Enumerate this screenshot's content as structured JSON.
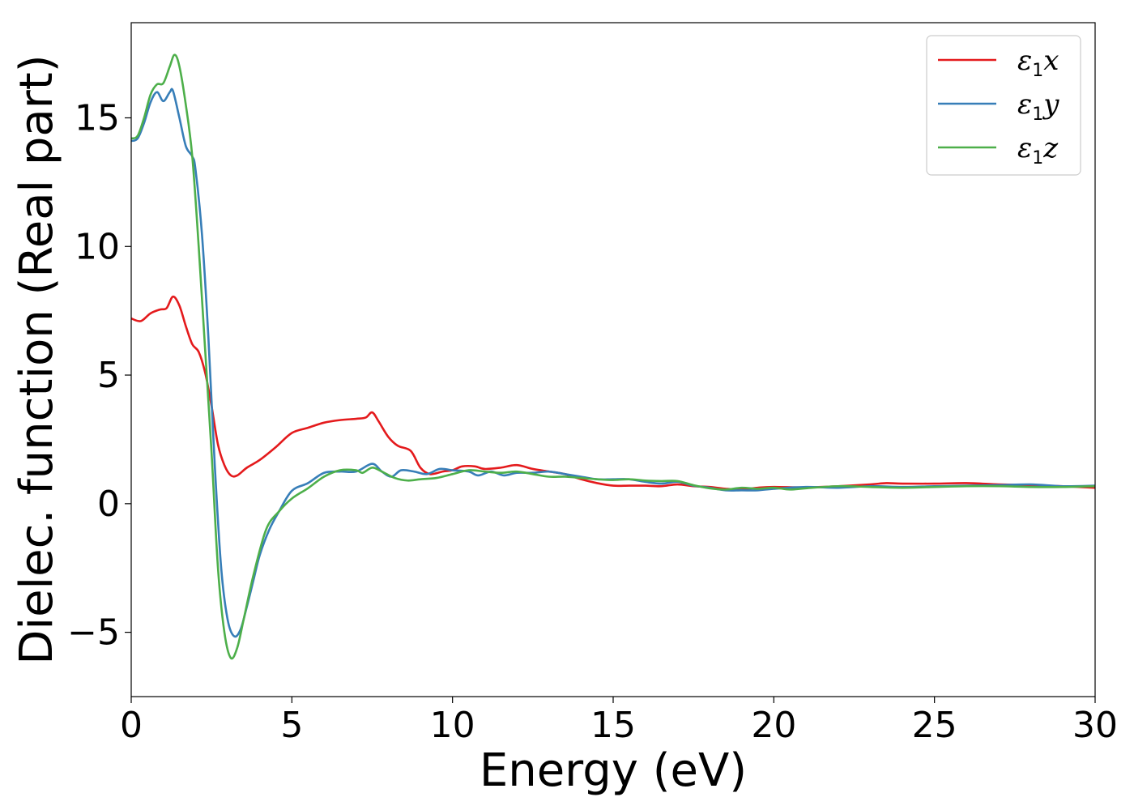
{
  "chart_data": {
    "type": "line",
    "title": "",
    "xlabel": "Energy (eV)",
    "ylabel": "Dielec. function (Real part)",
    "xlim": [
      0,
      30
    ],
    "ylim": [
      -7.5,
      18.7
    ],
    "x_ticks": [
      0,
      5,
      10,
      15,
      20,
      25,
      30
    ],
    "y_ticks": [
      -5,
      0,
      5,
      10,
      15
    ],
    "grid": false,
    "legend": {
      "position": "top-right",
      "entries": [
        {
          "symbol": "ε",
          "subscript": "1",
          "axis": "x"
        },
        {
          "symbol": "ε",
          "subscript": "1",
          "axis": "y"
        },
        {
          "symbol": "ε",
          "subscript": "1",
          "axis": "z"
        }
      ]
    },
    "colors": [
      "#e41a1c",
      "#377eb8",
      "#4daf4a"
    ],
    "series": [
      {
        "name": "ε1x",
        "color": "#e41a1c",
        "points": [
          [
            0,
            7.2
          ],
          [
            0.3,
            7.1
          ],
          [
            0.6,
            7.4
          ],
          [
            0.9,
            7.55
          ],
          [
            1.1,
            7.6
          ],
          [
            1.3,
            8.05
          ],
          [
            1.5,
            7.7
          ],
          [
            1.7,
            6.9
          ],
          [
            1.9,
            6.2
          ],
          [
            2.1,
            5.9
          ],
          [
            2.3,
            5.1
          ],
          [
            2.5,
            3.8
          ],
          [
            2.7,
            2.3
          ],
          [
            2.9,
            1.5
          ],
          [
            3.1,
            1.1
          ],
          [
            3.3,
            1.1
          ],
          [
            3.6,
            1.4
          ],
          [
            4.0,
            1.7
          ],
          [
            4.5,
            2.2
          ],
          [
            5.0,
            2.75
          ],
          [
            5.5,
            2.95
          ],
          [
            6.0,
            3.15
          ],
          [
            6.5,
            3.25
          ],
          [
            7.0,
            3.3
          ],
          [
            7.3,
            3.35
          ],
          [
            7.5,
            3.55
          ],
          [
            7.7,
            3.2
          ],
          [
            8.0,
            2.6
          ],
          [
            8.3,
            2.25
          ],
          [
            8.7,
            2.05
          ],
          [
            9.0,
            1.4
          ],
          [
            9.3,
            1.15
          ],
          [
            9.7,
            1.25
          ],
          [
            10.0,
            1.3
          ],
          [
            10.3,
            1.45
          ],
          [
            10.7,
            1.45
          ],
          [
            11.0,
            1.35
          ],
          [
            11.5,
            1.4
          ],
          [
            12.0,
            1.5
          ],
          [
            12.5,
            1.35
          ],
          [
            13.0,
            1.25
          ],
          [
            13.5,
            1.15
          ],
          [
            14.0,
            0.95
          ],
          [
            14.5,
            0.8
          ],
          [
            15.0,
            0.7
          ],
          [
            15.5,
            0.7
          ],
          [
            16.0,
            0.7
          ],
          [
            16.5,
            0.68
          ],
          [
            17.0,
            0.75
          ],
          [
            17.5,
            0.68
          ],
          [
            18.0,
            0.65
          ],
          [
            18.5,
            0.58
          ],
          [
            19.0,
            0.55
          ],
          [
            19.5,
            0.62
          ],
          [
            20.0,
            0.65
          ],
          [
            21.0,
            0.63
          ],
          [
            22.0,
            0.68
          ],
          [
            23.0,
            0.75
          ],
          [
            23.5,
            0.8
          ],
          [
            24.0,
            0.78
          ],
          [
            25.0,
            0.78
          ],
          [
            26.0,
            0.8
          ],
          [
            27.0,
            0.75
          ],
          [
            28.0,
            0.72
          ],
          [
            29.0,
            0.68
          ],
          [
            30.0,
            0.62
          ]
        ]
      },
      {
        "name": "ε1y",
        "color": "#377eb8",
        "points": [
          [
            0,
            14.1
          ],
          [
            0.2,
            14.2
          ],
          [
            0.4,
            14.8
          ],
          [
            0.6,
            15.6
          ],
          [
            0.8,
            16.0
          ],
          [
            1.0,
            15.65
          ],
          [
            1.2,
            16.0
          ],
          [
            1.3,
            16.05
          ],
          [
            1.5,
            15.0
          ],
          [
            1.7,
            13.9
          ],
          [
            1.9,
            13.5
          ],
          [
            2.0,
            13.0
          ],
          [
            2.2,
            10.5
          ],
          [
            2.4,
            6.5
          ],
          [
            2.6,
            1.5
          ],
          [
            2.8,
            -2.5
          ],
          [
            3.0,
            -4.5
          ],
          [
            3.2,
            -5.15
          ],
          [
            3.4,
            -4.9
          ],
          [
            3.6,
            -4.0
          ],
          [
            3.8,
            -3.0
          ],
          [
            4.0,
            -2.0
          ],
          [
            4.3,
            -1.0
          ],
          [
            4.6,
            -0.3
          ],
          [
            5.0,
            0.5
          ],
          [
            5.5,
            0.8
          ],
          [
            6.0,
            1.2
          ],
          [
            6.5,
            1.25
          ],
          [
            7.0,
            1.25
          ],
          [
            7.5,
            1.55
          ],
          [
            7.8,
            1.25
          ],
          [
            8.1,
            1.05
          ],
          [
            8.4,
            1.3
          ],
          [
            8.8,
            1.25
          ],
          [
            9.2,
            1.15
          ],
          [
            9.6,
            1.35
          ],
          [
            10.0,
            1.3
          ],
          [
            10.5,
            1.25
          ],
          [
            10.8,
            1.1
          ],
          [
            11.2,
            1.25
          ],
          [
            11.6,
            1.1
          ],
          [
            12.0,
            1.2
          ],
          [
            12.5,
            1.2
          ],
          [
            13.0,
            1.25
          ],
          [
            13.5,
            1.15
          ],
          [
            14.0,
            1.05
          ],
          [
            14.5,
            0.95
          ],
          [
            15.0,
            0.95
          ],
          [
            15.5,
            0.95
          ],
          [
            16.0,
            0.85
          ],
          [
            16.5,
            0.78
          ],
          [
            17.0,
            0.85
          ],
          [
            17.5,
            0.7
          ],
          [
            18.0,
            0.62
          ],
          [
            18.5,
            0.52
          ],
          [
            19.0,
            0.52
          ],
          [
            19.5,
            0.52
          ],
          [
            20.0,
            0.58
          ],
          [
            21.0,
            0.65
          ],
          [
            22.0,
            0.62
          ],
          [
            23.0,
            0.68
          ],
          [
            24.0,
            0.65
          ],
          [
            25.0,
            0.68
          ],
          [
            26.0,
            0.7
          ],
          [
            27.0,
            0.72
          ],
          [
            28.0,
            0.75
          ],
          [
            29.0,
            0.68
          ],
          [
            30.0,
            0.7
          ]
        ]
      },
      {
        "name": "ε1z",
        "color": "#4daf4a",
        "points": [
          [
            0,
            14.2
          ],
          [
            0.2,
            14.3
          ],
          [
            0.4,
            15.0
          ],
          [
            0.6,
            15.9
          ],
          [
            0.8,
            16.3
          ],
          [
            1.0,
            16.35
          ],
          [
            1.2,
            17.0
          ],
          [
            1.35,
            17.45
          ],
          [
            1.5,
            17.0
          ],
          [
            1.7,
            15.5
          ],
          [
            1.9,
            13.5
          ],
          [
            2.1,
            10.0
          ],
          [
            2.3,
            6.0
          ],
          [
            2.5,
            2.0
          ],
          [
            2.7,
            -2.5
          ],
          [
            2.9,
            -5.0
          ],
          [
            3.1,
            -6.0
          ],
          [
            3.3,
            -5.6
          ],
          [
            3.5,
            -4.5
          ],
          [
            3.8,
            -2.8
          ],
          [
            4.2,
            -1.0
          ],
          [
            4.6,
            -0.3
          ],
          [
            5.0,
            0.2
          ],
          [
            5.5,
            0.6
          ],
          [
            6.0,
            1.05
          ],
          [
            6.5,
            1.3
          ],
          [
            7.0,
            1.3
          ],
          [
            7.2,
            1.2
          ],
          [
            7.5,
            1.4
          ],
          [
            7.8,
            1.25
          ],
          [
            8.2,
            1.0
          ],
          [
            8.6,
            0.9
          ],
          [
            9.0,
            0.95
          ],
          [
            9.5,
            1.0
          ],
          [
            10.0,
            1.15
          ],
          [
            10.5,
            1.3
          ],
          [
            11.0,
            1.25
          ],
          [
            11.5,
            1.2
          ],
          [
            12.0,
            1.25
          ],
          [
            12.5,
            1.15
          ],
          [
            13.0,
            1.05
          ],
          [
            13.5,
            1.05
          ],
          [
            14.0,
            1.0
          ],
          [
            14.5,
            0.95
          ],
          [
            15.0,
            0.92
          ],
          [
            15.5,
            0.95
          ],
          [
            16.0,
            0.9
          ],
          [
            16.5,
            0.88
          ],
          [
            17.0,
            0.88
          ],
          [
            17.5,
            0.72
          ],
          [
            18.0,
            0.6
          ],
          [
            18.5,
            0.55
          ],
          [
            19.0,
            0.62
          ],
          [
            19.5,
            0.58
          ],
          [
            20.0,
            0.62
          ],
          [
            20.5,
            0.55
          ],
          [
            21.0,
            0.6
          ],
          [
            22.0,
            0.68
          ],
          [
            23.0,
            0.65
          ],
          [
            24.0,
            0.62
          ],
          [
            25.0,
            0.65
          ],
          [
            26.0,
            0.68
          ],
          [
            27.0,
            0.68
          ],
          [
            28.0,
            0.65
          ],
          [
            29.0,
            0.65
          ],
          [
            30.0,
            0.68
          ]
        ]
      }
    ]
  }
}
